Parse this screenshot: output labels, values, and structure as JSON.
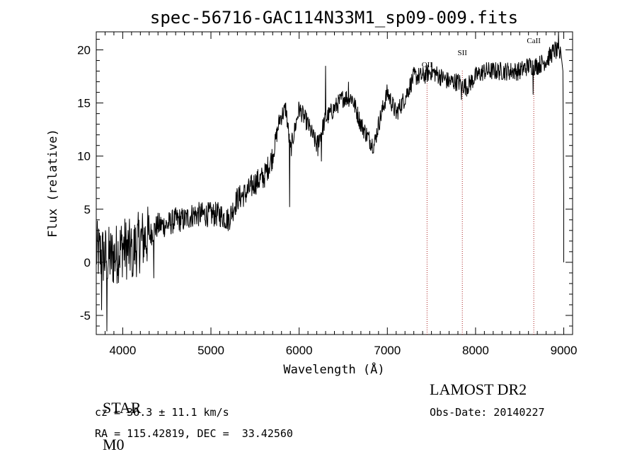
{
  "chart_data": {
    "type": "line",
    "title": "spec-56716-GAC114N33M1_sp09-009.fits",
    "xlabel": "Wavelength (Å)",
    "ylabel": "Flux (relative)",
    "xlim": [
      3700,
      9100
    ],
    "ylim": [
      -6.8,
      21.7
    ],
    "xticks": [
      4000,
      5000,
      6000,
      7000,
      8000,
      9000
    ],
    "yticks": [
      -5,
      0,
      5,
      10,
      15,
      20
    ],
    "grid": false,
    "series_color": "#000000",
    "line_marker_color": "#aa2222",
    "spectrum_anchors": [
      [
        3700,
        1.0
      ],
      [
        3800,
        0.5
      ],
      [
        3900,
        0.5
      ],
      [
        4000,
        1.5
      ],
      [
        4100,
        1.0
      ],
      [
        4200,
        2.0
      ],
      [
        4300,
        2.5
      ],
      [
        4400,
        3.5
      ],
      [
        4500,
        3.5
      ],
      [
        4600,
        4.0
      ],
      [
        4700,
        4.0
      ],
      [
        4800,
        4.5
      ],
      [
        4900,
        4.5
      ],
      [
        5000,
        4.5
      ],
      [
        5100,
        4.5
      ],
      [
        5200,
        4.0
      ],
      [
        5300,
        6.0
      ],
      [
        5400,
        6.5
      ],
      [
        5500,
        7.5
      ],
      [
        5600,
        8.0
      ],
      [
        5700,
        10.0
      ],
      [
        5780,
        13.5
      ],
      [
        5850,
        14.5
      ],
      [
        5900,
        10.5
      ],
      [
        6000,
        14.5
      ],
      [
        6100,
        13.0
      ],
      [
        6200,
        11.0
      ],
      [
        6300,
        13.5
      ],
      [
        6400,
        14.5
      ],
      [
        6500,
        15.5
      ],
      [
        6600,
        15.5
      ],
      [
        6700,
        13.0
      ],
      [
        6800,
        11.5
      ],
      [
        6850,
        11.0
      ],
      [
        6900,
        13.0
      ],
      [
        7000,
        16.0
      ],
      [
        7100,
        14.0
      ],
      [
        7200,
        15.5
      ],
      [
        7300,
        17.5
      ],
      [
        7400,
        17.5
      ],
      [
        7500,
        18.0
      ],
      [
        7600,
        17.5
      ],
      [
        7700,
        17.0
      ],
      [
        7800,
        17.0
      ],
      [
        7900,
        16.5
      ],
      [
        8000,
        17.5
      ],
      [
        8100,
        18.0
      ],
      [
        8200,
        18.0
      ],
      [
        8300,
        18.0
      ],
      [
        8400,
        18.0
      ],
      [
        8500,
        18.0
      ],
      [
        8600,
        18.5
      ],
      [
        8700,
        18.5
      ],
      [
        8800,
        19.0
      ],
      [
        8900,
        20.0
      ],
      [
        8960,
        19.5
      ]
    ],
    "spikes": [
      [
        5890,
        5.2
      ],
      [
        5910,
        10.0
      ],
      [
        6300,
        18.5
      ],
      [
        6250,
        9.5
      ],
      [
        6560,
        17.0
      ],
      [
        3820,
        -6.5
      ],
      [
        4350,
        -1.5
      ],
      [
        4110,
        -1.0
      ],
      [
        3760,
        -4.5
      ],
      [
        8940,
        21.8
      ],
      [
        7840,
        15.3
      ],
      [
        8650,
        15.8
      ],
      [
        6210,
        10.0
      ]
    ],
    "lines": [
      {
        "label": "OII",
        "x": 7450
      },
      {
        "label": "SII",
        "x": 7850
      },
      {
        "label": "CaII",
        "x": 8660
      }
    ]
  },
  "info": {
    "star": "STAR",
    "subclass": "M0",
    "survey": "LAMOST DR2",
    "cz": "cz = 36.3 ± 11.1 km/s",
    "obs_date": "Obs-Date: 20140227",
    "coords": "RA = 115.42819, DEC =  33.42560"
  }
}
